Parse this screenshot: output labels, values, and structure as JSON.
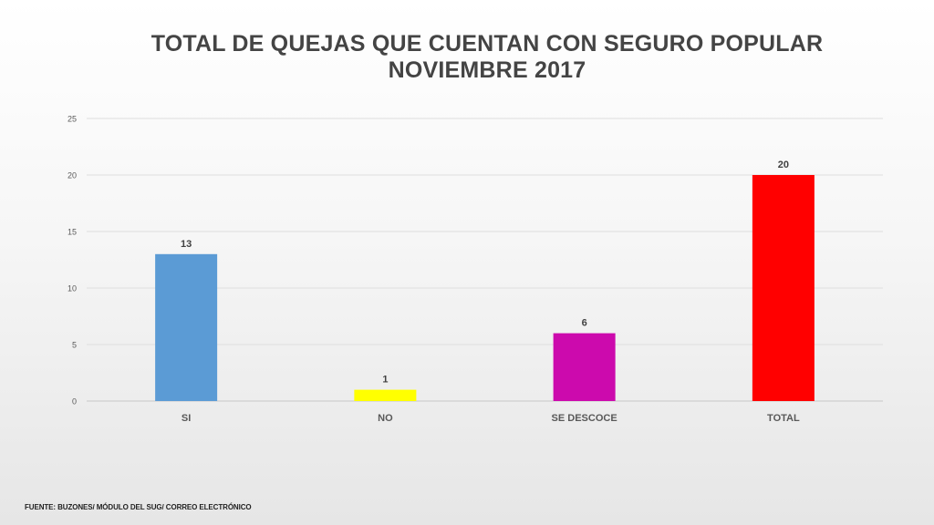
{
  "title_line1": "TOTAL DE QUEJAS QUE CUENTAN CON SEGURO POPULAR",
  "title_line2": "NOVIEMBRE 2017",
  "footer": "FUENTE: BUZONES/ MÓDULO DEL SUG/ CORREO ELECTRÓNICO",
  "chart_data": {
    "type": "bar",
    "title": "TOTAL DE QUEJAS QUE CUENTAN CON SEGURO POPULAR NOVIEMBRE 2017",
    "categories": [
      "SI",
      "NO",
      "SE DESCOCE",
      "TOTAL"
    ],
    "values": [
      13,
      1,
      6,
      20
    ],
    "colors": [
      "#5b9bd5",
      "#ffff00",
      "#cc0aad",
      "#ff0000"
    ],
    "ylim": [
      0,
      25
    ],
    "yticks": [
      0,
      5,
      10,
      15,
      20,
      25
    ],
    "grid": true,
    "data_labels": true,
    "legend": "none"
  }
}
